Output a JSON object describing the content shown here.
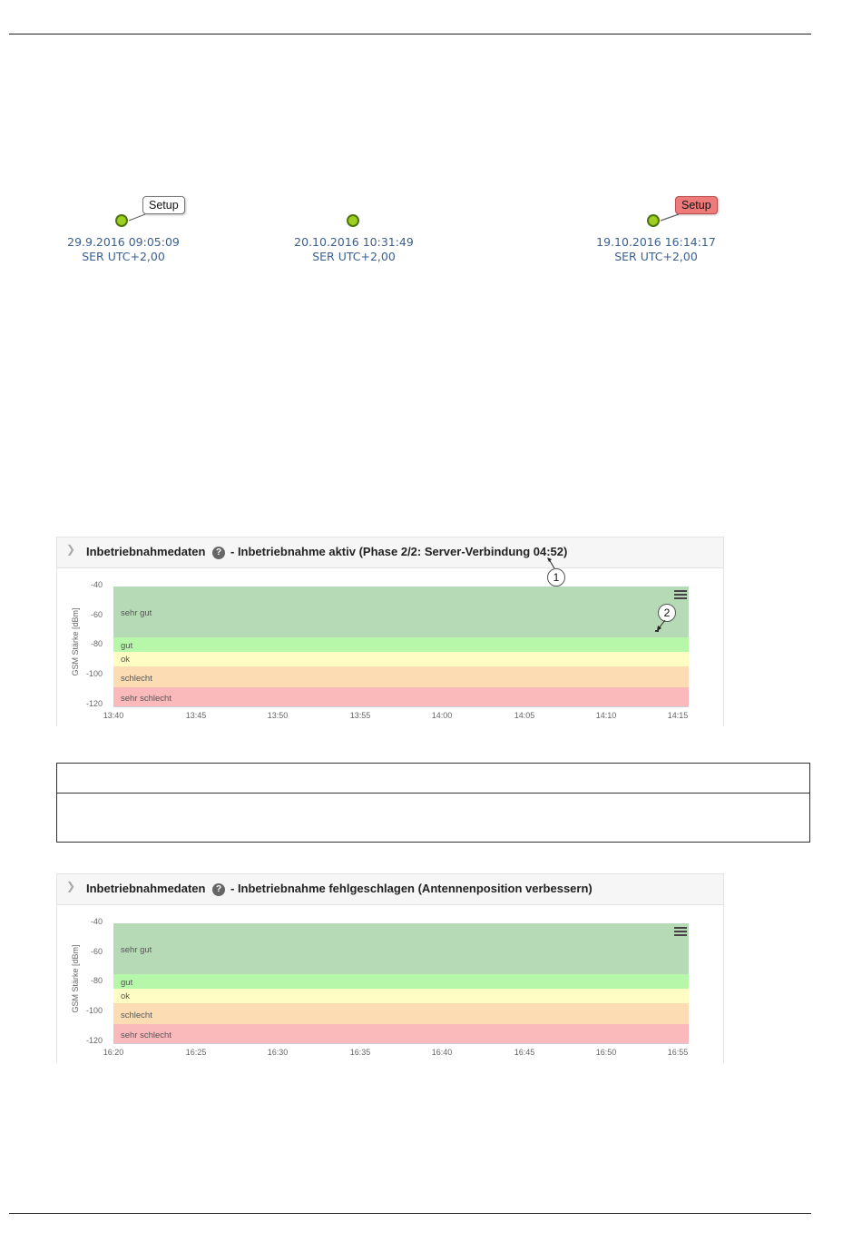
{
  "devices": [
    {
      "date": "29.9.2016 09:05:09",
      "timezone": "SER UTC+2,00",
      "bubble": "Setup",
      "bubble_color": "#ffffff"
    },
    {
      "date": "20.10.2016 10:31:49",
      "timezone": "SER UTC+2,00",
      "bubble": "",
      "bubble_color": ""
    },
    {
      "date": "19.10.2016 16:14:17",
      "timezone": "SER UTC+2,00",
      "bubble": "Setup",
      "bubble_color": "#ef7a7a"
    }
  ],
  "panels": [
    {
      "title": "Inbetriebnahmedaten",
      "status": "- Inbetriebnahme aktiv (Phase 2/2: Server-Verbindung 04:52)",
      "ylabel": "GSM Stärke [dBm]",
      "yticks": [
        "-40",
        "-60",
        "-80",
        "-100",
        "-120"
      ],
      "xticks": [
        "13:40",
        "13:45",
        "13:50",
        "13:55",
        "14:00",
        "14:05",
        "14:10",
        "14:15"
      ],
      "bands": [
        "sehr gut",
        "gut",
        "ok",
        "schlecht",
        "sehr schlecht"
      ],
      "callouts": [
        "1",
        "2"
      ]
    },
    {
      "title": "Inbetriebnahmedaten",
      "status": "- Inbetriebnahme fehlgeschlagen (Antennenposition verbessern)",
      "ylabel": "GSM Stärke [dBm]",
      "yticks": [
        "-40",
        "-60",
        "-80",
        "-100",
        "-120"
      ],
      "xticks": [
        "16:20",
        "16:25",
        "16:30",
        "16:35",
        "16:40",
        "16:45",
        "16:50",
        "16:55"
      ],
      "bands": [
        "sehr gut",
        "gut",
        "ok",
        "schlecht",
        "sehr schlecht"
      ]
    }
  ],
  "colors": {
    "sehr_gut": "#b6dab5",
    "gut": "#b7f7aa",
    "ok": "#fdfdc4",
    "schlecht": "#fbdcb3",
    "sehr_schlecht": "#fab9ba",
    "status_dot": "#9ccf1e",
    "date_text": "#3a5f91"
  }
}
